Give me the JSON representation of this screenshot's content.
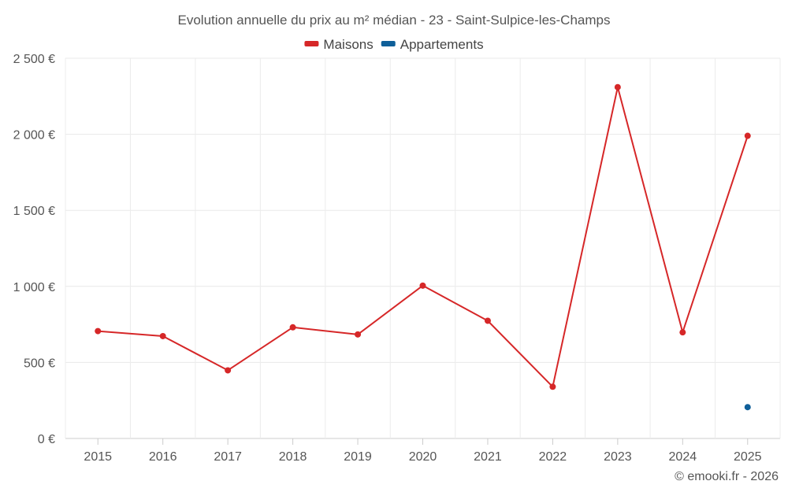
{
  "chart_data": {
    "type": "line",
    "title": "Evolution annuelle du prix au m² médian - 23 - Saint-Sulpice-les-Champs",
    "categories": [
      "2015",
      "2016",
      "2017",
      "2018",
      "2019",
      "2020",
      "2021",
      "2022",
      "2023",
      "2024",
      "2025"
    ],
    "series": [
      {
        "name": "Maisons",
        "color": "#d62728",
        "values": [
          706,
          673,
          448,
          731,
          684,
          1005,
          774,
          340,
          2310,
          698,
          1990
        ]
      },
      {
        "name": "Appartements",
        "color": "#0f5f99",
        "values": [
          null,
          null,
          null,
          null,
          null,
          null,
          null,
          null,
          null,
          null,
          206
        ]
      }
    ],
    "y_ticks": [
      {
        "value": 0,
        "label": "0 €"
      },
      {
        "value": 500,
        "label": "500 €"
      },
      {
        "value": 1000,
        "label": "1 000 €"
      },
      {
        "value": 1500,
        "label": "1 500 €"
      },
      {
        "value": 2000,
        "label": "2 000 €"
      },
      {
        "value": 2500,
        "label": "2 500 €"
      }
    ],
    "ylim": [
      0,
      2500
    ],
    "grid": true,
    "legend": "top-center",
    "credit": "© emooki.fr - 2026"
  }
}
